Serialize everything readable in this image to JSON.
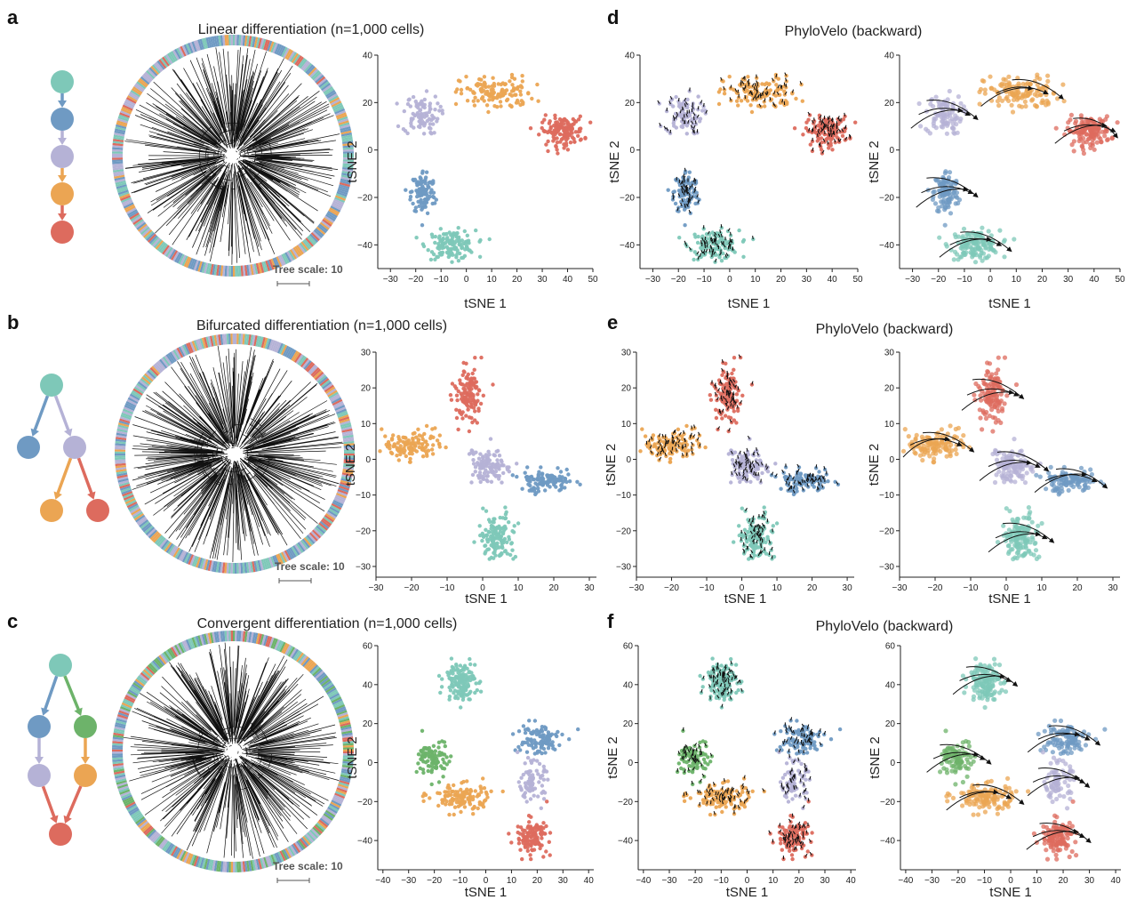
{
  "colors": {
    "teal": "#7ec8b8",
    "blue": "#6f9ac3",
    "lavender": "#b5b2d6",
    "orange": "#eba553",
    "red": "#dd6b5e",
    "green": "#6db36a"
  },
  "rows": [
    {
      "letter_left": "a",
      "letter_right": "d",
      "title": "Linear differentiation (n=1,000 cells)",
      "right_title": "PhyloVelo (backward)",
      "tree_scale": "Tree scale: 10",
      "lineage": {
        "nodes": [
          {
            "id": "n1",
            "color": "teal"
          },
          {
            "id": "n2",
            "color": "blue"
          },
          {
            "id": "n3",
            "color": "lavender"
          },
          {
            "id": "n4",
            "color": "orange"
          },
          {
            "id": "n5",
            "color": "red"
          }
        ],
        "edges": [
          [
            "n1",
            "n2"
          ],
          [
            "n2",
            "n3"
          ],
          [
            "n3",
            "n4"
          ],
          [
            "n4",
            "n5"
          ]
        ]
      },
      "xlabel": "tSNE 1",
      "ylabel": "tSNE 2",
      "xticks": [
        "−30",
        "−20",
        "−10",
        "0",
        "10",
        "20",
        "30",
        "40",
        "50"
      ],
      "yticks": [
        "−40",
        "−20",
        "0",
        "20",
        "40"
      ]
    },
    {
      "letter_left": "b",
      "letter_right": "e",
      "title": "Bifurcated differentiation (n=1,000 cells)",
      "right_title": "PhyloVelo (backward)",
      "tree_scale": "Tree scale: 10",
      "lineage": {
        "nodes": [
          {
            "id": "n1",
            "color": "teal"
          },
          {
            "id": "n2",
            "color": "blue"
          },
          {
            "id": "n3",
            "color": "lavender"
          },
          {
            "id": "n4",
            "color": "orange"
          },
          {
            "id": "n5",
            "color": "red"
          }
        ],
        "edges": [
          [
            "n1",
            "n2"
          ],
          [
            "n1",
            "n3"
          ],
          [
            "n3",
            "n4"
          ],
          [
            "n3",
            "n5"
          ]
        ]
      },
      "xlabel": "tSNE 1",
      "ylabel": "tSNE 2",
      "xticks": [
        "−30",
        "−20",
        "−10",
        "0",
        "10",
        "20",
        "30"
      ],
      "yticks": [
        "−30",
        "−20",
        "−10",
        "0",
        "10",
        "20",
        "30"
      ]
    },
    {
      "letter_left": "c",
      "letter_right": "f",
      "title": "Convergent differentiation (n=1,000 cells)",
      "right_title": "PhyloVelo (backward)",
      "tree_scale": "Tree scale: 10",
      "lineage": {
        "nodes": [
          {
            "id": "n1",
            "color": "teal"
          },
          {
            "id": "n2",
            "color": "blue"
          },
          {
            "id": "n3",
            "color": "green"
          },
          {
            "id": "n4",
            "color": "lavender"
          },
          {
            "id": "n5",
            "color": "orange"
          },
          {
            "id": "n6",
            "color": "red"
          }
        ],
        "edges": [
          [
            "n1",
            "n2"
          ],
          [
            "n1",
            "n3"
          ],
          [
            "n2",
            "n4"
          ],
          [
            "n3",
            "n5"
          ],
          [
            "n4",
            "n6"
          ],
          [
            "n5",
            "n6"
          ]
        ]
      },
      "xlabel": "tSNE 1",
      "ylabel": "tSNE 2",
      "xticks": [
        "−40",
        "−30",
        "−20",
        "−10",
        "0",
        "10",
        "20",
        "30",
        "40"
      ],
      "yticks": [
        "−40",
        "−20",
        "0",
        "20",
        "40",
        "60"
      ]
    }
  ],
  "chart_data": [
    {
      "type": "scatter",
      "panel": "a",
      "xlim": [
        -35,
        50
      ],
      "ylim": [
        -50,
        40
      ],
      "xlabel": "tSNE 1",
      "ylabel": "tSNE 2",
      "clusters": [
        {
          "color": "teal",
          "center": [
            -6,
            -40
          ],
          "spread": [
            8,
            5
          ],
          "n": 140
        },
        {
          "color": "blue",
          "center": [
            -17,
            -18
          ],
          "spread": [
            4,
            8
          ],
          "n": 110
        },
        {
          "color": "lavender",
          "center": [
            -18,
            15
          ],
          "spread": [
            6,
            7
          ],
          "n": 90
        },
        {
          "color": "orange",
          "center": [
            12,
            24
          ],
          "spread": [
            12,
            6
          ],
          "n": 130
        },
        {
          "color": "red",
          "center": [
            38,
            8
          ],
          "spread": [
            7,
            5
          ],
          "n": 140
        }
      ]
    },
    {
      "type": "scatter",
      "panel": "b",
      "xlim": [
        -30,
        32
      ],
      "ylim": [
        -33,
        30
      ],
      "xlabel": "tSNE 1",
      "ylabel": "tSNE 2",
      "clusters": [
        {
          "color": "teal",
          "center": [
            4,
            -22
          ],
          "spread": [
            4,
            5
          ],
          "n": 130
        },
        {
          "color": "blue",
          "center": [
            18,
            -6
          ],
          "spread": [
            6,
            2.5
          ],
          "n": 110
        },
        {
          "color": "lavender",
          "center": [
            2,
            -2
          ],
          "spread": [
            5,
            5
          ],
          "n": 110
        },
        {
          "color": "orange",
          "center": [
            -20,
            4
          ],
          "spread": [
            7,
            3
          ],
          "n": 120
        },
        {
          "color": "red",
          "center": [
            -4,
            18
          ],
          "spread": [
            3,
            6
          ],
          "n": 120
        }
      ]
    },
    {
      "type": "scatter",
      "panel": "c",
      "xlim": [
        -42,
        42
      ],
      "ylim": [
        -55,
        60
      ],
      "xlabel": "tSNE 1",
      "ylabel": "tSNE 2",
      "clusters": [
        {
          "color": "teal",
          "center": [
            -10,
            42
          ],
          "spread": [
            5,
            8
          ],
          "n": 140
        },
        {
          "color": "blue",
          "center": [
            20,
            12
          ],
          "spread": [
            8,
            7
          ],
          "n": 100
        },
        {
          "color": "green",
          "center": [
            -20,
            2
          ],
          "spread": [
            5,
            8
          ],
          "n": 90
        },
        {
          "color": "lavender",
          "center": [
            18,
            -10
          ],
          "spread": [
            4,
            8
          ],
          "n": 80
        },
        {
          "color": "orange",
          "center": [
            -10,
            -18
          ],
          "spread": [
            10,
            6
          ],
          "n": 120
        },
        {
          "color": "red",
          "center": [
            18,
            -38
          ],
          "spread": [
            5,
            7
          ],
          "n": 120
        }
      ]
    }
  ]
}
